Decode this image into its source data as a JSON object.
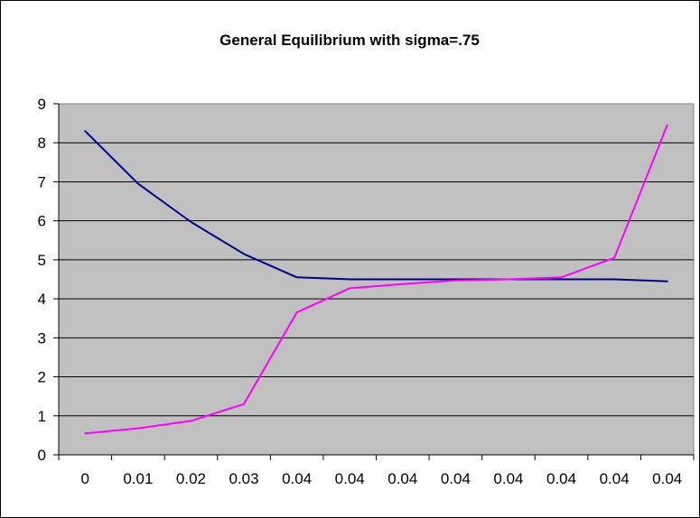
{
  "chart_data": {
    "type": "line",
    "title": "General Equilibrium with sigma=.75",
    "xlabel": "",
    "ylabel": "",
    "categories": [
      "0",
      "0.01",
      "0.02",
      "0.03",
      "0.04",
      "0.04",
      "0.04",
      "0.04",
      "0.04",
      "0.04",
      "0.04",
      "0.04"
    ],
    "ylim": [
      0,
      9
    ],
    "yticks": [
      "0",
      "1",
      "2",
      "3",
      "4",
      "5",
      "6",
      "7",
      "8",
      "9"
    ],
    "grid": true,
    "legend": "none",
    "plot_background": "#c0c0c0",
    "series": [
      {
        "color": "#000080",
        "values": [
          8.3,
          6.95,
          5.97,
          5.15,
          4.55,
          4.5,
          4.5,
          4.5,
          4.5,
          4.5,
          4.5,
          4.45
        ]
      },
      {
        "color": "#ff00ff",
        "values": [
          0.55,
          0.68,
          0.87,
          1.3,
          3.65,
          4.27,
          4.38,
          4.47,
          4.5,
          4.55,
          5.05,
          8.45
        ]
      }
    ]
  }
}
